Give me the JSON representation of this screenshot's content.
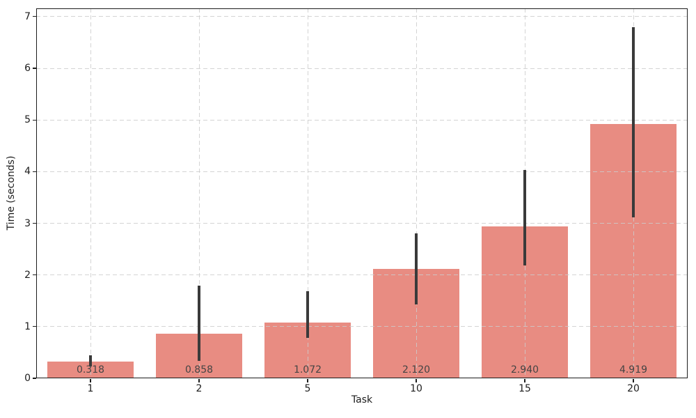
{
  "figure": {
    "background": "#ffffff"
  },
  "chart_data": {
    "type": "bar",
    "title": "",
    "xlabel": "Task",
    "ylabel": "Time (seconds)",
    "categories": [
      "1",
      "2",
      "5",
      "10",
      "15",
      "20"
    ],
    "values": [
      0.318,
      0.858,
      1.072,
      2.12,
      2.94,
      4.919
    ],
    "bar_labels": [
      "0.318",
      "0.858",
      "1.072",
      "2.120",
      "2.940",
      "4.919"
    ],
    "error_low": [
      0.23,
      0.34,
      0.78,
      1.43,
      2.18,
      3.11
    ],
    "error_high": [
      0.45,
      1.79,
      1.68,
      2.81,
      4.03,
      6.8
    ],
    "ylim": [
      0,
      7.16
    ],
    "yticks": [
      0,
      1,
      2,
      3,
      4,
      5,
      6,
      7
    ],
    "grid": true,
    "grid_style": "dashed",
    "legend": "none",
    "bar_color": "#e88c82",
    "error_bar_color": "#3a3a3a",
    "grid_color": "#cccccc",
    "spine_color": "#1c1c1c",
    "tick_label_color": "#1c1c1c",
    "value_label_color": "#444444"
  }
}
